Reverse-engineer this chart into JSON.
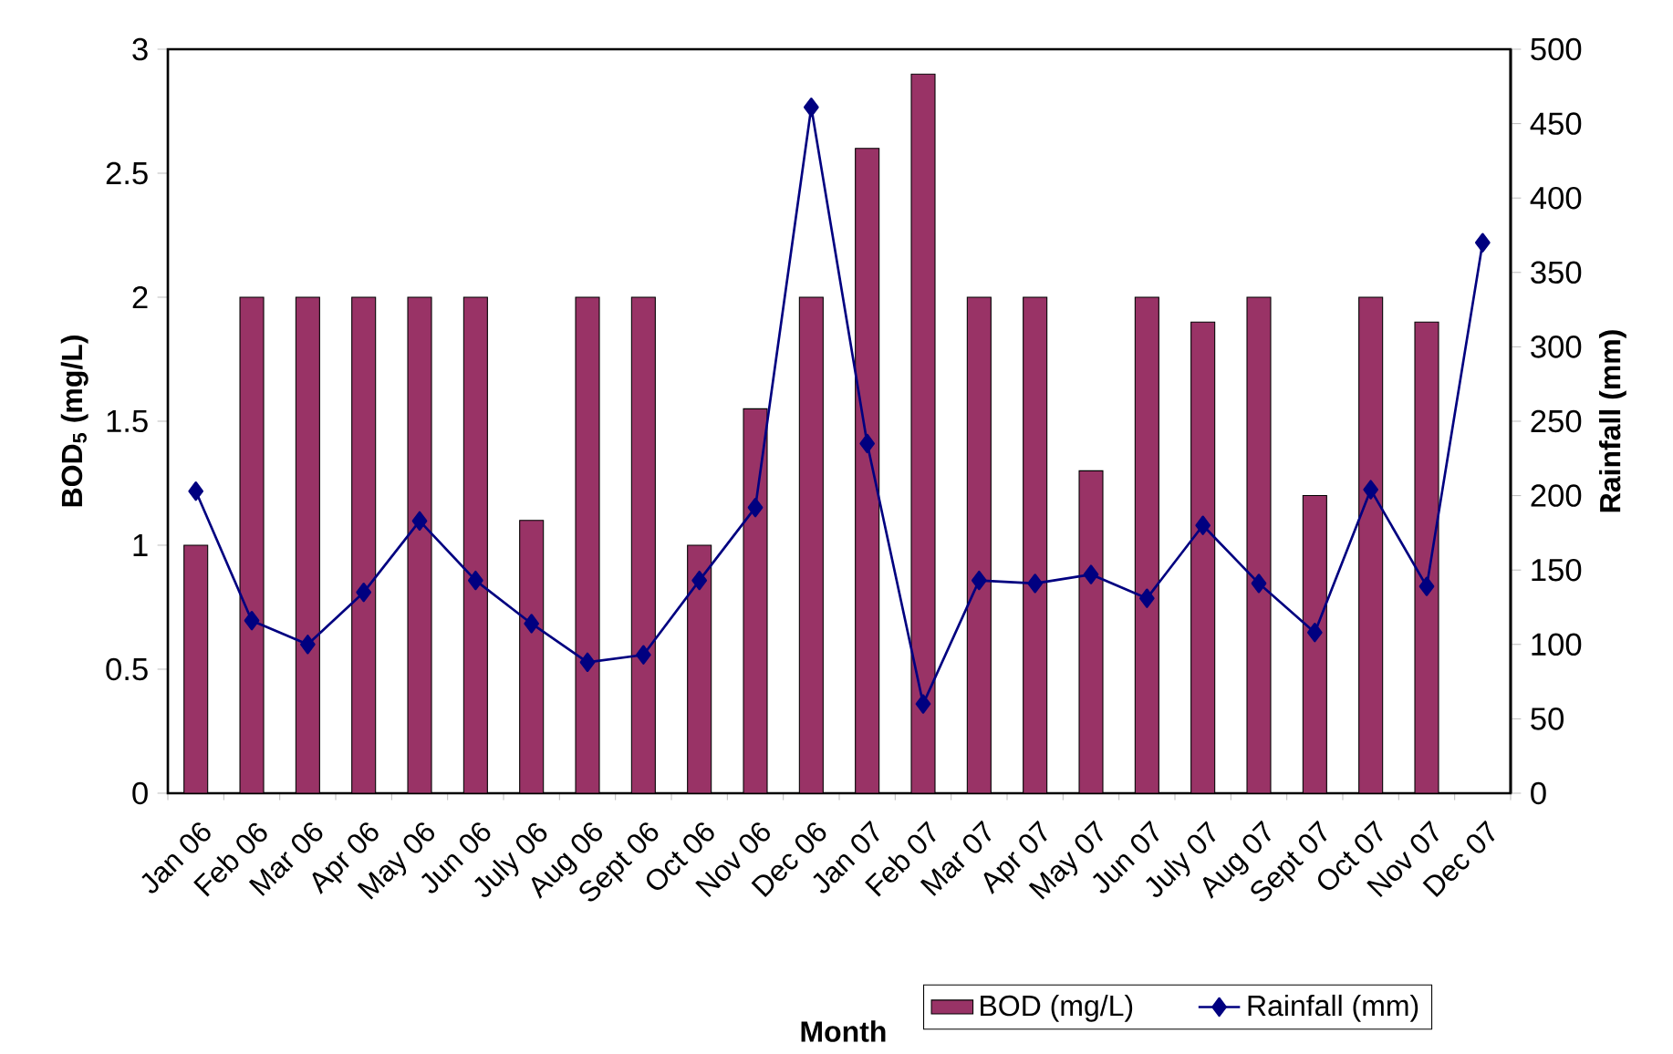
{
  "chart_data": {
    "type": "bar",
    "categories": [
      "Jan 06",
      "Feb 06",
      "Mar 06",
      "Apr 06",
      "May 06",
      "Jun 06",
      "July 06",
      "Aug 06",
      "Sept 06",
      "Oct 06",
      "Nov 06",
      "Dec 06",
      "Jan 07",
      "Feb 07",
      "Mar 07",
      "Apr 07",
      "May 07",
      "Jun 07",
      "July 07",
      "Aug 07",
      "Sept 07",
      "Oct 07",
      "Nov 07",
      "Dec 07"
    ],
    "xlabel": "Month",
    "ylabel": "BOD$_{5}$ (mg/L)",
    "y2label": "Rainfall (mm)",
    "ylim": [
      0,
      3
    ],
    "yticks": [
      0,
      0.5,
      1,
      1.5,
      2,
      2.5,
      3
    ],
    "y2lim": [
      0,
      500
    ],
    "y2ticks": [
      0,
      50,
      100,
      150,
      200,
      250,
      300,
      350,
      400,
      450,
      500
    ],
    "legend": "bottom",
    "series": [
      {
        "name": "BOD (mg/L)",
        "color": "#993366",
        "values": [
          1,
          2,
          2,
          2,
          2,
          2,
          1.1,
          2,
          2,
          1,
          1.55,
          2,
          2.6,
          2.9,
          2,
          2,
          1.3,
          2,
          1.9,
          2,
          1.2,
          2,
          1.9,
          null
        ]
      },
      {
        "name": "Rainfall (mm)",
        "type": "line",
        "axis": "y2",
        "color": "#000080",
        "marker": "diamond",
        "values": [
          203,
          116,
          100,
          135,
          183,
          143,
          114,
          88,
          93,
          143,
          192,
          461,
          235,
          60,
          143,
          141,
          147,
          131,
          180,
          141,
          108,
          204,
          139,
          370
        ]
      }
    ]
  }
}
